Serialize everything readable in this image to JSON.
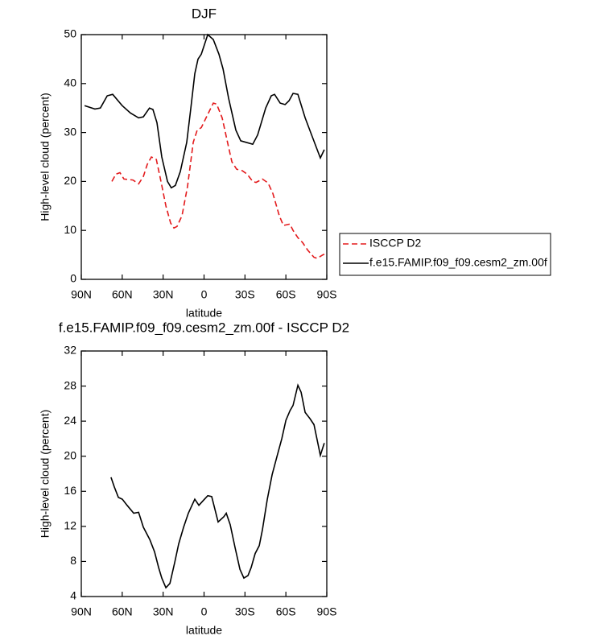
{
  "chart_data": [
    {
      "type": "line",
      "title": "DJF",
      "xlabel": "latitude",
      "ylabel": "High-level cloud (percent)",
      "xlim": [
        90,
        -90
      ],
      "xticks": [
        {
          "value": 90,
          "label": "90N"
        },
        {
          "value": 60,
          "label": "60N"
        },
        {
          "value": 30,
          "label": "30N"
        },
        0,
        {
          "value": -30,
          "label": "30S"
        },
        {
          "value": -60,
          "label": "60S"
        },
        {
          "value": -90,
          "label": "90S"
        }
      ],
      "ylim": [
        0,
        50
      ],
      "yticks": [
        0,
        10,
        20,
        30,
        40,
        50
      ],
      "legend": "outside right",
      "series": [
        {
          "name": "ISCCP D2",
          "color": "#e31a1c",
          "dash": true,
          "x": [
            67.6,
            64.6,
            61.7,
            58.7,
            52.2,
            48,
            44.5,
            41.6,
            38.6,
            35,
            31.6,
            28,
            24.5,
            22.1,
            19.8,
            16.2,
            12.1,
            7.9,
            5,
            2,
            -1.5,
            -6.8,
            -9.2,
            -13.3,
            -18,
            -20.4,
            -23.9,
            -28,
            -31.6,
            -35.7,
            -38.1,
            -42.8,
            -46.9,
            -50.5,
            -55.2,
            -58.2,
            -62.9,
            -65.3,
            -68.8,
            -72.3,
            -75.9,
            -80.6,
            -82.9,
            -87.1,
            -89.5
          ],
          "values": [
            20,
            21.5,
            21.8,
            20.5,
            20.3,
            19.5,
            21,
            23.5,
            25,
            24.5,
            20,
            15,
            11.5,
            10.5,
            10.8,
            13,
            19,
            28,
            30.5,
            31,
            33,
            36,
            35.8,
            33,
            27,
            24,
            22.5,
            22.2,
            21.5,
            20,
            19.8,
            20.5,
            19.7,
            17.5,
            13,
            11,
            11.3,
            10,
            8.5,
            7.5,
            6,
            4.5,
            4.3,
            5,
            5.3
          ]
        },
        {
          "name": "f.e15.FAMIP.f09_f09.cesm2_zm.00f",
          "color": "#000000",
          "dash": false,
          "x": [
            87.6,
            80,
            76,
            71,
            67,
            60,
            54,
            48,
            44.5,
            40,
            37.5,
            34.5,
            31,
            26.8,
            24,
            21,
            17.4,
            12.7,
            9.7,
            6.8,
            4.4,
            2,
            -2.7,
            -6.8,
            -10.9,
            -13.9,
            -18,
            -23.3,
            -26.9,
            -35.7,
            -39.3,
            -45.2,
            -49.3,
            -51.7,
            -55.8,
            -59.4,
            -62.3,
            -65.3,
            -68.8,
            -74.1,
            -78.2,
            -83.6,
            -85.3,
            -88.2
          ],
          "values": [
            35.5,
            34.8,
            35,
            37.5,
            37.8,
            35.5,
            34,
            33,
            33.2,
            35,
            34.7,
            32,
            25,
            20,
            18.7,
            19.2,
            22,
            28,
            35,
            42,
            45,
            46,
            50,
            49,
            46,
            43,
            37,
            30.5,
            28.3,
            27.6,
            29.5,
            35,
            37.5,
            37.8,
            36,
            35.7,
            36.5,
            38,
            37.8,
            33,
            30,
            26,
            24.8,
            26.5
          ]
        }
      ]
    },
    {
      "type": "line",
      "title": "f.e15.FAMIP.f09_f09.cesm2_zm.00f - ISCCP D2",
      "xlabel": "latitude",
      "ylabel": "High-level cloud (percent)",
      "xlim": [
        90,
        -90
      ],
      "xticks": [
        {
          "value": 90,
          "label": "90N"
        },
        {
          "value": 60,
          "label": "60N"
        },
        {
          "value": 30,
          "label": "30N"
        },
        0,
        {
          "value": -30,
          "label": "30S"
        },
        {
          "value": -60,
          "label": "60S"
        },
        {
          "value": -90,
          "label": "90S"
        }
      ],
      "ylim": [
        4,
        32
      ],
      "yticks": [
        4,
        8,
        12,
        16,
        20,
        24,
        28,
        32
      ],
      "color": "#000000",
      "x": [
        68.2,
        65.8,
        62.8,
        59.9,
        56.4,
        51.6,
        48,
        44.5,
        39.8,
        36.3,
        33.3,
        31,
        28,
        25,
        21.5,
        18.6,
        15,
        11.5,
        6.8,
        3.8,
        0.9,
        -2.7,
        -5.6,
        -10.3,
        -14.5,
        -16.3,
        -19.2,
        -22.7,
        -26.3,
        -29.2,
        -32.2,
        -34.5,
        -37.5,
        -40.5,
        -42.8,
        -46.4,
        -49.9,
        -53.5,
        -57,
        -60,
        -63,
        -65.3,
        -68.8,
        -71.2,
        -74.1,
        -77.6,
        -80.6,
        -85.3,
        -88.2
      ],
      "values": [
        17.6,
        16.5,
        15.3,
        15.1,
        14.4,
        13.5,
        13.6,
        11.9,
        10.5,
        9.1,
        7.3,
        6.1,
        5,
        5.5,
        7.9,
        10,
        11.9,
        13.5,
        15.1,
        14.4,
        14.9,
        15.5,
        15.4,
        12.5,
        13.1,
        13.5,
        12.2,
        9.6,
        7.1,
        6.1,
        6.4,
        7.3,
        8.9,
        9.8,
        11.6,
        15.1,
        17.9,
        20,
        22,
        24.1,
        25.2,
        25.8,
        28.1,
        27.3,
        25,
        24.3,
        23.6,
        20.1,
        21.5
      ]
    }
  ]
}
